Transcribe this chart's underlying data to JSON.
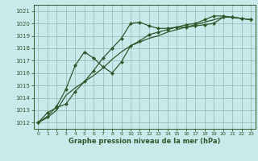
{
  "xlabel": "Graphe pression niveau de la mer (hPa)",
  "ylim": [
    1011.5,
    1021.5
  ],
  "xlim": [
    -0.5,
    23.5
  ],
  "yticks": [
    1012,
    1013,
    1014,
    1015,
    1016,
    1017,
    1018,
    1019,
    1020,
    1021
  ],
  "xticks": [
    0,
    1,
    2,
    3,
    4,
    5,
    6,
    7,
    8,
    9,
    10,
    11,
    12,
    13,
    14,
    15,
    16,
    17,
    18,
    19,
    20,
    21,
    22,
    23
  ],
  "bg_color": "#c8eaea",
  "grid_color": "#9bbdbd",
  "line_color": "#2d5a2d",
  "markersize": 2.5,
  "linewidth": 0.9,
  "series1_x": [
    0,
    1,
    2,
    3,
    4,
    5,
    6,
    7,
    8,
    9,
    10,
    11,
    12,
    13,
    14,
    15,
    16,
    17,
    18,
    19,
    20,
    21,
    22,
    23
  ],
  "series1_y": [
    1012.0,
    1012.8,
    1013.2,
    1013.5,
    1014.5,
    1015.3,
    1016.2,
    1017.2,
    1018.0,
    1018.8,
    1020.0,
    1020.1,
    1019.8,
    1019.6,
    1019.6,
    1019.7,
    1019.7,
    1019.8,
    1019.9,
    1020.0,
    1020.5,
    1020.5,
    1020.4,
    1020.3
  ],
  "series2_x": [
    0,
    1,
    2,
    3,
    4,
    5,
    6,
    7,
    8,
    9,
    10,
    11,
    12,
    13,
    14,
    15,
    16,
    17,
    18,
    19,
    20,
    21,
    22,
    23
  ],
  "series2_y": [
    1012.0,
    1012.5,
    1013.3,
    1014.7,
    1016.6,
    1017.7,
    1017.2,
    1016.5,
    1016.0,
    1016.9,
    1018.2,
    1018.6,
    1019.1,
    1019.3,
    1019.5,
    1019.7,
    1019.9,
    1020.0,
    1020.3,
    1020.6,
    1020.6,
    1020.5,
    1020.4,
    1020.3
  ],
  "series3_x": [
    0,
    1,
    2,
    3,
    4,
    5,
    6,
    7,
    8,
    9,
    10,
    11,
    12,
    13,
    14,
    15,
    16,
    17,
    18,
    19,
    20,
    21,
    22,
    23
  ],
  "series3_y": [
    1012.0,
    1012.4,
    1013.0,
    1014.2,
    1014.8,
    1015.3,
    1015.8,
    1016.4,
    1017.1,
    1017.7,
    1018.2,
    1018.5,
    1018.8,
    1019.0,
    1019.3,
    1019.5,
    1019.7,
    1019.9,
    1020.1,
    1020.3,
    1020.5,
    1020.5,
    1020.4,
    1020.3
  ]
}
